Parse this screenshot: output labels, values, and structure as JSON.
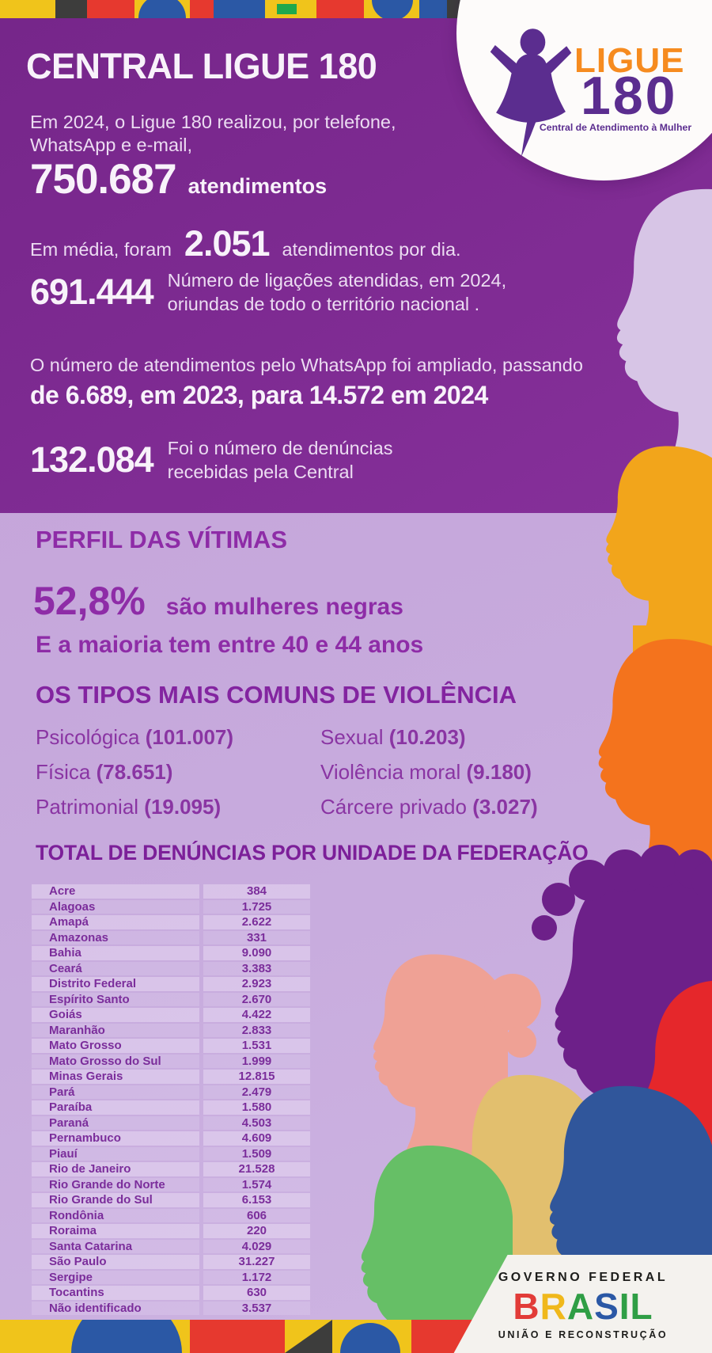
{
  "colors": {
    "hero-bg": "#7d2a91",
    "page-bg-top": "#c3a1d7",
    "page-bg-bottom": "#cdb4e2",
    "heading-purple": "#8e2ca7",
    "deep-purple": "#7c1f99",
    "table-text": "#7b2d9b",
    "hero-text": "#ecdcf2",
    "hero-strong": "#f8f2fa",
    "logo-orange": "#f68b1f",
    "logo-purple": "#5b2d8f",
    "gov-text": "#1d1d1b"
  },
  "hero": {
    "title": "CENTRAL LIGUE 180",
    "intro_line1": "Em 2024, o Ligue 180 realizou, por telefone,",
    "intro_line2": "WhatsApp e e-mail,",
    "total_value": "750.687",
    "total_label": "atendimentos",
    "daily_prefix": "Em média, foram",
    "daily_value": "2.051",
    "daily_suffix": "atendimentos por dia.",
    "calls_value": "691.444",
    "calls_desc_line1": "Número de ligações atendidas, em 2024,",
    "calls_desc_line2": "oriundas de todo o território nacional .",
    "whatsapp_line": "O número de atendimentos pelo WhatsApp foi ampliado, passando",
    "whatsapp_bold": "de 6.689, em 2023, para 14.572 em 2024",
    "reports_value": "132.084",
    "reports_desc_line1": "Foi o número de denúncias",
    "reports_desc_line2": "recebidas pela Central"
  },
  "logo": {
    "ligue": "LIGUE",
    "number": "180",
    "tagline": "Central de Atendimento à Mulher"
  },
  "profile": {
    "heading": "PERFIL DAS VÍTIMAS",
    "stat_value": "52,8%",
    "stat_label": "são mulheres negras",
    "age_line": "E a maioria tem entre 40 e 44 anos"
  },
  "violence": {
    "heading": "OS TIPOS MAIS COMUNS DE VIOLÊNCIA",
    "items": [
      {
        "label": "Psicológica",
        "value": "(101.007)"
      },
      {
        "label": "Sexual",
        "value": "(10.203)"
      },
      {
        "label": "Física",
        "value": "(78.651)"
      },
      {
        "label": "Violência moral",
        "value": "(9.180)"
      },
      {
        "label": "Patrimonial",
        "value": "(19.095)"
      },
      {
        "label": "Cárcere privado",
        "value": "(3.027)"
      }
    ]
  },
  "table": {
    "heading": "TOTAL DE DENÚNCIAS POR UNIDADE DA FEDERAÇÃO",
    "rows": [
      {
        "state": "Acre",
        "value": "384"
      },
      {
        "state": "Alagoas",
        "value": "1.725"
      },
      {
        "state": "Amapá",
        "value": "2.622"
      },
      {
        "state": "Amazonas",
        "value": "331"
      },
      {
        "state": "Bahia",
        "value": "9.090"
      },
      {
        "state": "Ceará",
        "value": "3.383"
      },
      {
        "state": "Distrito Federal",
        "value": "2.923"
      },
      {
        "state": "Espírito Santo",
        "value": "2.670"
      },
      {
        "state": "Goiás",
        "value": "4.422"
      },
      {
        "state": "Maranhão",
        "value": "2.833"
      },
      {
        "state": "Mato Grosso",
        "value": "1.531"
      },
      {
        "state": "Mato Grosso do Sul",
        "value": "1.999"
      },
      {
        "state": "Minas Gerais",
        "value": "12.815"
      },
      {
        "state": "Pará",
        "value": "2.479"
      },
      {
        "state": "Paraíba",
        "value": "1.580"
      },
      {
        "state": "Paraná",
        "value": "4.503"
      },
      {
        "state": "Pernambuco",
        "value": "4.609"
      },
      {
        "state": "Piauí",
        "value": "1.509"
      },
      {
        "state": "Rio de Janeiro",
        "value": "21.528"
      },
      {
        "state": "Rio Grande do Norte",
        "value": "1.574"
      },
      {
        "state": "Rio Grande do Sul",
        "value": "6.153"
      },
      {
        "state": "Rondônia",
        "value": "606"
      },
      {
        "state": "Roraima",
        "value": "220"
      },
      {
        "state": "Santa Catarina",
        "value": "4.029"
      },
      {
        "state": "São Paulo",
        "value": "31.227"
      },
      {
        "state": "Sergipe",
        "value": "1.172"
      },
      {
        "state": "Tocantins",
        "value": "630"
      },
      {
        "state": "Não identificado",
        "value": "3.537"
      }
    ]
  },
  "gov": {
    "line1": "GOVERNO FEDERAL",
    "brand": "BRASIL",
    "line2": "UNIÃO E RECONSTRUÇÃO"
  }
}
